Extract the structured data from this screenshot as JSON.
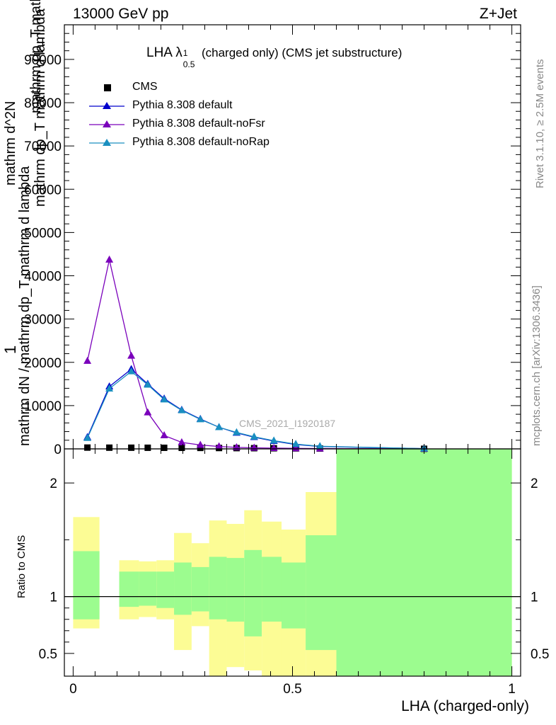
{
  "header": {
    "left": "13000 GeV pp",
    "right": "Z+Jet"
  },
  "side_labels": {
    "rivet": "Rivet 3.1.10, ≥ 2.5M events",
    "mcplots": "mcplots.cern.ch [arXiv:1306.3436]"
  },
  "plot_title": {
    "main": "LHA λ",
    "sup": "1",
    "sub": "0.5",
    "rest": "(charged only) (CMS jet substructure)"
  },
  "watermark": "CMS_2021_I1920187",
  "y_axis_label": {
    "line1": "1",
    "line2": "mathrm dN / mathrm dp_T mathrm d lambda",
    "line3": "mathrm d^2N",
    "line4": "mathrm dp_T mathrm d lambda"
  },
  "ratio_y_label": "Ratio to CMS",
  "x_axis_label": "LHA (charged-only)",
  "chart_data": [
    {
      "type": "line",
      "panel": "main",
      "x": [
        0.0325,
        0.0825,
        0.1325,
        0.17,
        0.2075,
        0.2475,
        0.29,
        0.3325,
        0.3725,
        0.4125,
        0.4575,
        0.5075,
        0.5625,
        0.8
      ],
      "series": [
        {
          "name": "CMS",
          "color": "#000000",
          "marker": "square",
          "values": [
            300,
            280,
            270,
            260,
            250,
            240,
            220,
            200,
            180,
            160,
            140,
            110,
            80,
            20
          ]
        },
        {
          "name": "Pythia 8.308 default",
          "color": "#0000cc",
          "marker": "triangle",
          "values": [
            2700,
            14400,
            18400,
            15000,
            11600,
            9000,
            6900,
            5000,
            3700,
            2700,
            1800,
            1000,
            550,
            50
          ]
        },
        {
          "name": "Pythia 8.308 default-noFsr",
          "color": "#7a00bb",
          "marker": "triangle",
          "values": [
            20300,
            43700,
            21500,
            8400,
            3100,
            1500,
            900,
            550,
            350,
            250,
            170,
            110,
            70,
            10
          ]
        },
        {
          "name": "Pythia 8.308 default-noRap",
          "color": "#1a8fc0",
          "marker": "triangle",
          "values": [
            2500,
            13900,
            17900,
            14800,
            11400,
            8900,
            6800,
            5000,
            3800,
            2800,
            1900,
            1100,
            600,
            60
          ]
        }
      ],
      "ylim": [
        0,
        98000
      ],
      "xlim": [
        -0.02,
        1.02
      ],
      "y_ticks": [
        "0",
        "10000",
        "20000",
        "30000",
        "40000",
        "50000",
        "60000",
        "70000",
        "80000",
        "90000"
      ],
      "legend_position": "top-left"
    },
    {
      "type": "area",
      "panel": "ratio",
      "bins": [
        0,
        0.06,
        0.105,
        0.15,
        0.19,
        0.23,
        0.27,
        0.31,
        0.35,
        0.39,
        0.43,
        0.475,
        0.53,
        0.6,
        1.0
      ],
      "band_1sigma_low": [
        0.8,
        1.0,
        0.91,
        0.92,
        0.9,
        0.84,
        0.87,
        0.8,
        0.78,
        0.65,
        0.78,
        0.72,
        0.53,
        0.3,
        0.72
      ],
      "band_1sigma_high": [
        1.4,
        1.0,
        1.22,
        1.22,
        1.22,
        1.3,
        1.26,
        1.35,
        1.34,
        1.41,
        1.35,
        1.3,
        1.54,
        2.45,
        1.42
      ],
      "band_total_low": [
        0.72,
        1.0,
        0.8,
        0.82,
        0.8,
        0.53,
        0.74,
        0.3,
        0.38,
        0.35,
        0.3,
        0.3,
        0.3,
        0.3,
        0.72
      ],
      "band_total_high": [
        1.7,
        1.0,
        1.32,
        1.31,
        1.32,
        1.56,
        1.47,
        1.67,
        1.64,
        1.76,
        1.66,
        1.59,
        1.92,
        2.45,
        1.74
      ],
      "colors": {
        "inner": "#9cfc8f",
        "outer": "#fcfc95"
      },
      "ylim": [
        0.3,
        2.3
      ],
      "y_ticks": [
        "0.5",
        "1",
        "2"
      ],
      "x_ticks": [
        "0",
        "0.5",
        "1"
      ]
    }
  ]
}
